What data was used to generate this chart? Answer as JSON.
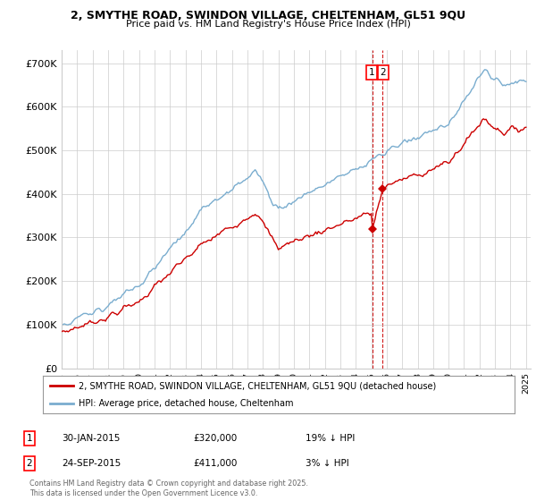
{
  "title_line1": "2, SMYTHE ROAD, SWINDON VILLAGE, CHELTENHAM, GL51 9QU",
  "title_line2": "Price paid vs. HM Land Registry's House Price Index (HPI)",
  "ylim": [
    0,
    730000
  ],
  "yticks": [
    0,
    100000,
    200000,
    300000,
    400000,
    500000,
    600000,
    700000
  ],
  "ytick_labels": [
    "£0",
    "£100K",
    "£200K",
    "£300K",
    "£400K",
    "£500K",
    "£600K",
    "£700K"
  ],
  "year_start": 1995,
  "year_end": 2025,
  "sale1_date": 2015.08,
  "sale1_price": 320000,
  "sale2_date": 2015.73,
  "sale2_price": 411000,
  "line1_color": "#cc0000",
  "line2_color": "#7aadcf",
  "dashed_line_color": "#cc0000",
  "legend_line1": "2, SMYTHE ROAD, SWINDON VILLAGE, CHELTENHAM, GL51 9QU (detached house)",
  "legend_line2": "HPI: Average price, detached house, Cheltenham",
  "footer": "Contains HM Land Registry data © Crown copyright and database right 2025.\nThis data is licensed under the Open Government Licence v3.0.",
  "background_color": "#ffffff",
  "grid_color": "#cccccc"
}
